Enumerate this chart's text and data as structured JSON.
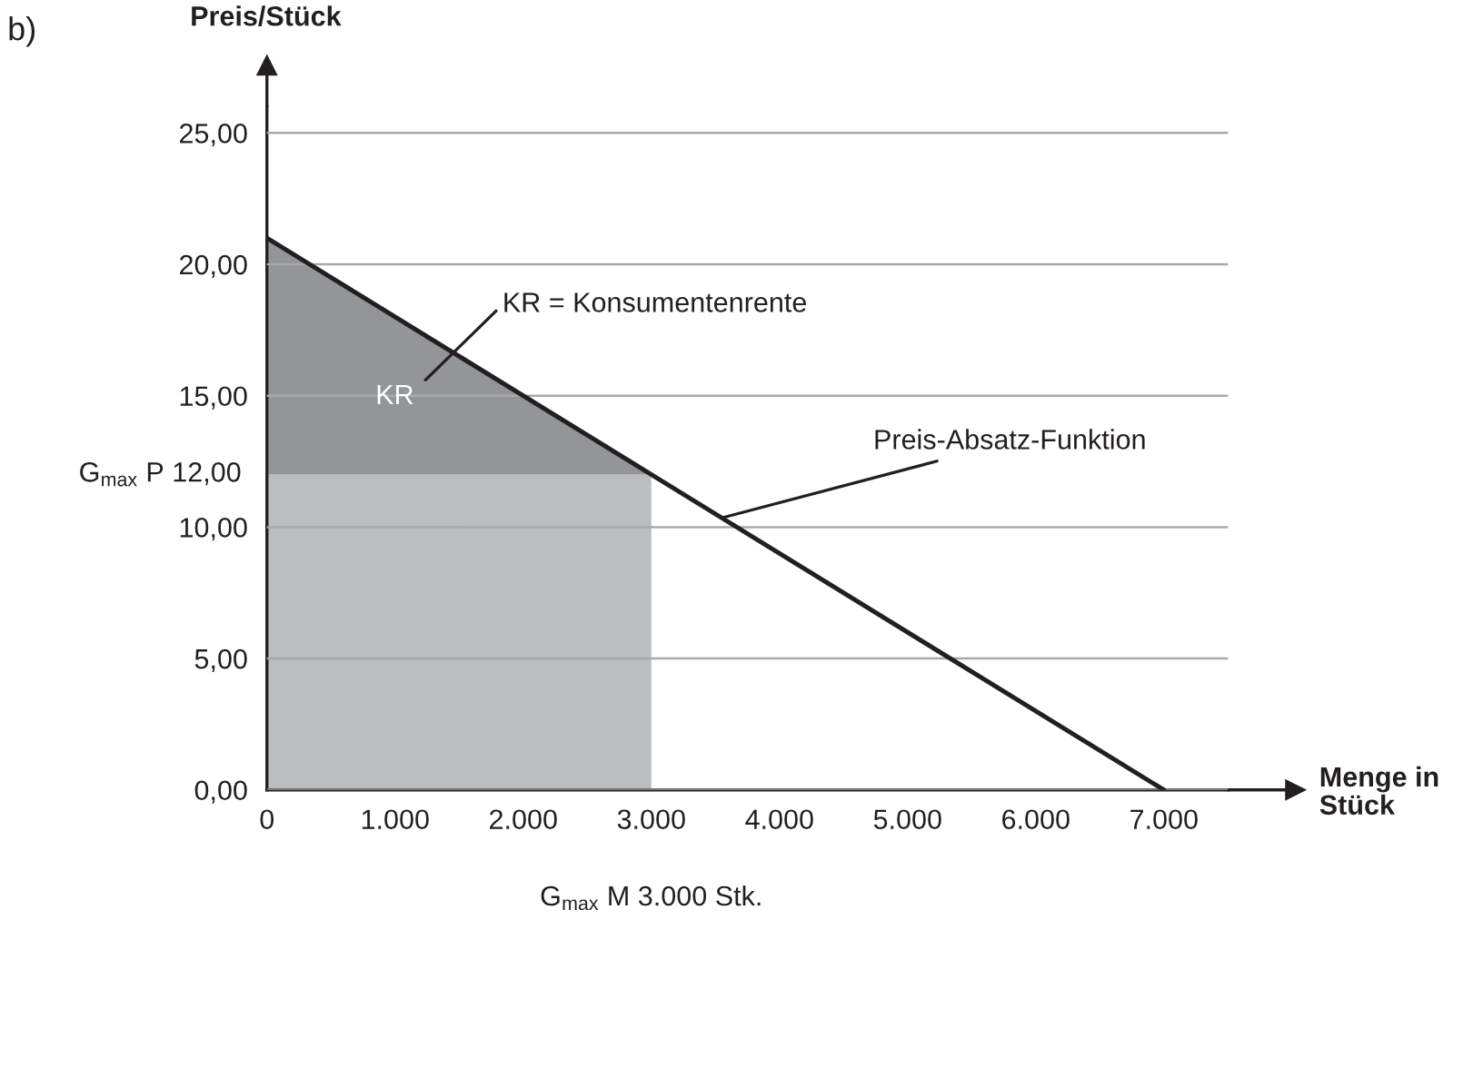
{
  "chart_data": {
    "type": "line",
    "xlabel": "Menge in\nStück",
    "ylabel": "Preis/Stück",
    "series": [
      {
        "type": "area",
        "color": "#bcbdc0",
        "x": [
          0,
          3000
        ],
        "values": [
          12,
          12
        ]
      },
      {
        "type": "area",
        "color": "#939598",
        "x": [
          0,
          3000
        ],
        "values": [
          9,
          0
        ]
      },
      {
        "type": "line",
        "color": "#231f20",
        "x": [
          0,
          7000
        ],
        "values": [
          21,
          0
        ]
      }
    ],
    "stacked": true,
    "xlim": [
      0,
      7500
    ],
    "ylim": [
      0,
      26
    ],
    "xticks": [
      0,
      {
        "value": 1000,
        "label": "1.000"
      },
      {
        "value": 2000,
        "label": "2.000"
      },
      {
        "value": 3000,
        "label": "3.000"
      },
      {
        "value": 4000,
        "label": "4.000"
      },
      {
        "value": 5000,
        "label": "5.000"
      },
      {
        "value": 6000,
        "label": "6.000"
      },
      {
        "value": 7000,
        "label": "7.000"
      }
    ],
    "yticks": [
      {
        "value": 0,
        "label": "0,00"
      },
      {
        "value": 5,
        "label": "5,00"
      },
      {
        "value": 10,
        "label": "10,00"
      },
      {
        "value": 15,
        "label": "15,00"
      },
      {
        "value": 20,
        "label": "20,00"
      },
      {
        "value": 25,
        "label": "25,00"
      }
    ],
    "grid": "y",
    "annotations": [
      "b)",
      "KR",
      "KR = Konsumentenrente",
      {
        "text": "Preis-Absatz-Funktion",
        "x": 3550,
        "y": 10.35
      },
      {
        "text": "G$_{max}$ P 12,00",
        "x": 0,
        "y": 12
      },
      "G$_{max}$ M 3.000 Stk."
    ]
  }
}
